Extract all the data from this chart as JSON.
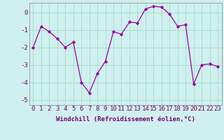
{
  "x": [
    0,
    1,
    2,
    3,
    4,
    5,
    6,
    7,
    8,
    9,
    10,
    11,
    12,
    13,
    14,
    15,
    16,
    17,
    18,
    19,
    20,
    21,
    22,
    23
  ],
  "y": [
    -2.0,
    -0.8,
    -1.1,
    -1.5,
    -2.0,
    -1.7,
    -4.0,
    -4.6,
    -3.5,
    -2.8,
    -1.1,
    -1.25,
    -0.55,
    -0.6,
    0.2,
    0.35,
    0.3,
    -0.1,
    -0.8,
    -0.7,
    -4.1,
    -3.0,
    -2.95,
    -3.1
  ],
  "line_color": "#9900aa",
  "marker": "D",
  "marker_size": 2.2,
  "bg_color": "#cff0ee",
  "grid_color": "#aaddcc",
  "xlabel": "Windchill (Refroidissement éolien,°C)",
  "xlabel_fontsize": 6.5,
  "xtick_labels": [
    "0",
    "1",
    "2",
    "3",
    "4",
    "5",
    "6",
    "7",
    "8",
    "9",
    "10",
    "11",
    "12",
    "13",
    "14",
    "15",
    "16",
    "17",
    "18",
    "19",
    "20",
    "21",
    "22",
    "23"
  ],
  "ylim": [
    -5.3,
    0.55
  ],
  "yticks": [
    0,
    -1,
    -2,
    -3,
    -4,
    -5
  ],
  "tick_fontsize": 6.5
}
